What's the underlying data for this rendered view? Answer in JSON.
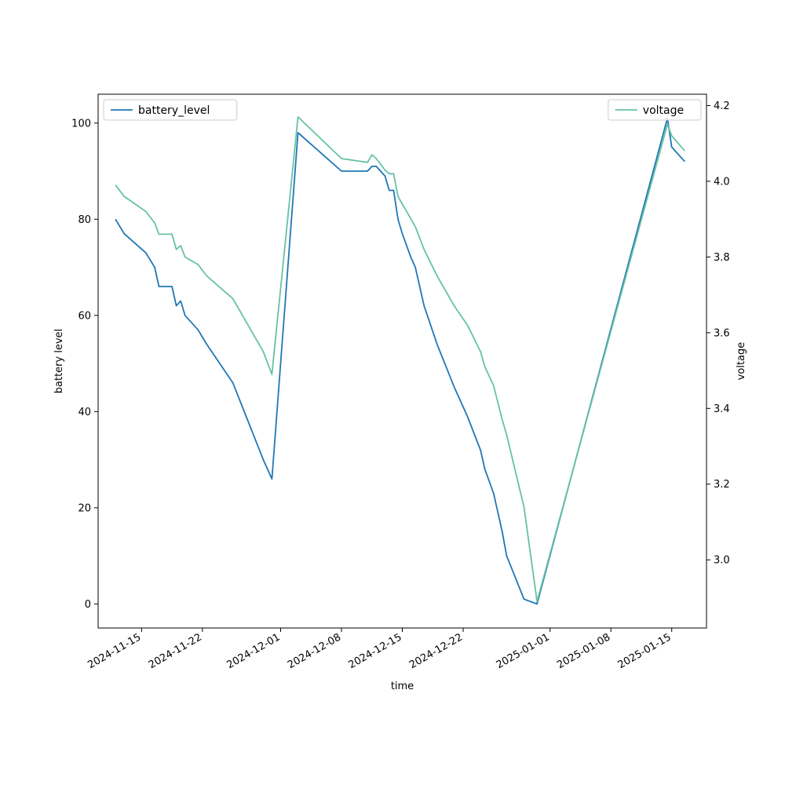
{
  "chart_data": {
    "type": "line",
    "xlabel": "time",
    "ylabel_left": "battery level",
    "ylabel_right": "voltage",
    "x_range": [
      "2024-11-10",
      "2025-01-19"
    ],
    "ylim_left": [
      -5,
      106
    ],
    "ylim_right": [
      2.82,
      4.23
    ],
    "x_ticks": [
      "2024-11-15",
      "2024-11-22",
      "2024-12-01",
      "2024-12-08",
      "2024-12-15",
      "2024-12-22",
      "2025-01-01",
      "2025-01-08",
      "2025-01-15"
    ],
    "y_ticks_left": [
      "0",
      "20",
      "40",
      "60",
      "80",
      "100"
    ],
    "y_ticks_right": [
      "3.0",
      "3.2",
      "3.4",
      "3.6",
      "3.8",
      "4.0",
      "4.2"
    ],
    "grid": false,
    "colors": {
      "battery_level": "#1f77b4",
      "voltage": "#66c2a5"
    },
    "series": [
      {
        "name": "battery_level",
        "axis": "left",
        "legend_position": "upper-left",
        "points": [
          [
            "2024-11-12",
            80
          ],
          [
            "2024-11-13",
            77
          ],
          [
            "2024-11-15.5",
            73
          ],
          [
            "2024-11-16.5",
            70
          ],
          [
            "2024-11-17",
            66
          ],
          [
            "2024-11-18.5",
            66
          ],
          [
            "2024-11-19",
            62
          ],
          [
            "2024-11-19.5",
            63
          ],
          [
            "2024-11-20",
            60
          ],
          [
            "2024-11-21.5",
            57
          ],
          [
            "2024-11-22.5",
            54
          ],
          [
            "2024-11-25.5",
            46
          ],
          [
            "2024-11-29",
            30
          ],
          [
            "2024-11-30",
            26
          ],
          [
            "2024-12-03",
            98
          ],
          [
            "2024-12-08",
            90
          ],
          [
            "2024-12-11",
            90
          ],
          [
            "2024-12-11.5",
            91
          ],
          [
            "2024-12-12",
            91
          ],
          [
            "2024-12-13",
            89
          ],
          [
            "2024-12-13.5",
            86
          ],
          [
            "2024-12-14",
            86
          ],
          [
            "2024-12-14.5",
            80
          ],
          [
            "2024-12-15",
            77
          ],
          [
            "2024-12-16",
            72
          ],
          [
            "2024-12-16.5",
            70
          ],
          [
            "2024-12-17.5",
            62
          ],
          [
            "2024-12-19",
            54
          ],
          [
            "2024-12-21",
            45
          ],
          [
            "2024-12-22.5",
            39
          ],
          [
            "2024-12-24",
            32
          ],
          [
            "2024-12-24.5",
            28
          ],
          [
            "2024-12-25.5",
            23
          ],
          [
            "2024-12-26.5",
            15
          ],
          [
            "2024-12-27",
            10
          ],
          [
            "2024-12-29",
            1
          ],
          [
            "2024-12-30.5",
            0
          ],
          [
            "2025-01-14.5",
            101
          ],
          [
            "2025-01-15",
            95
          ],
          [
            "2025-01-16.5",
            92
          ]
        ]
      },
      {
        "name": "voltage",
        "axis": "right",
        "legend_position": "upper-right",
        "points": [
          [
            "2024-11-12",
            3.99
          ],
          [
            "2024-11-13",
            3.96
          ],
          [
            "2024-11-15.5",
            3.92
          ],
          [
            "2024-11-16.5",
            3.89
          ],
          [
            "2024-11-17",
            3.86
          ],
          [
            "2024-11-18.5",
            3.86
          ],
          [
            "2024-11-19",
            3.82
          ],
          [
            "2024-11-19.5",
            3.83
          ],
          [
            "2024-11-20",
            3.8
          ],
          [
            "2024-11-21.5",
            3.78
          ],
          [
            "2024-11-22.5",
            3.75
          ],
          [
            "2024-11-25.5",
            3.69
          ],
          [
            "2024-11-29",
            3.55
          ],
          [
            "2024-11-30",
            3.49
          ],
          [
            "2024-12-03",
            4.17
          ],
          [
            "2024-12-08",
            4.06
          ],
          [
            "2024-12-11",
            4.05
          ],
          [
            "2024-12-11.5",
            4.07
          ],
          [
            "2024-12-12",
            4.06
          ],
          [
            "2024-12-13",
            4.03
          ],
          [
            "2024-12-13.5",
            4.02
          ],
          [
            "2024-12-14",
            4.02
          ],
          [
            "2024-12-14.5",
            3.96
          ],
          [
            "2024-12-15",
            3.94
          ],
          [
            "2024-12-16",
            3.9
          ],
          [
            "2024-12-16.5",
            3.88
          ],
          [
            "2024-12-17.5",
            3.82
          ],
          [
            "2024-12-19",
            3.75
          ],
          [
            "2024-12-21",
            3.67
          ],
          [
            "2024-12-22.5",
            3.62
          ],
          [
            "2024-12-24",
            3.55
          ],
          [
            "2024-12-24.5",
            3.51
          ],
          [
            "2024-12-25.5",
            3.46
          ],
          [
            "2024-12-26.5",
            3.37
          ],
          [
            "2024-12-27",
            3.33
          ],
          [
            "2024-12-29",
            3.14
          ],
          [
            "2024-12-30.5",
            2.89
          ],
          [
            "2025-01-14.5",
            4.15
          ],
          [
            "2025-01-15",
            4.12
          ],
          [
            "2025-01-16.5",
            4.08
          ]
        ]
      }
    ]
  }
}
